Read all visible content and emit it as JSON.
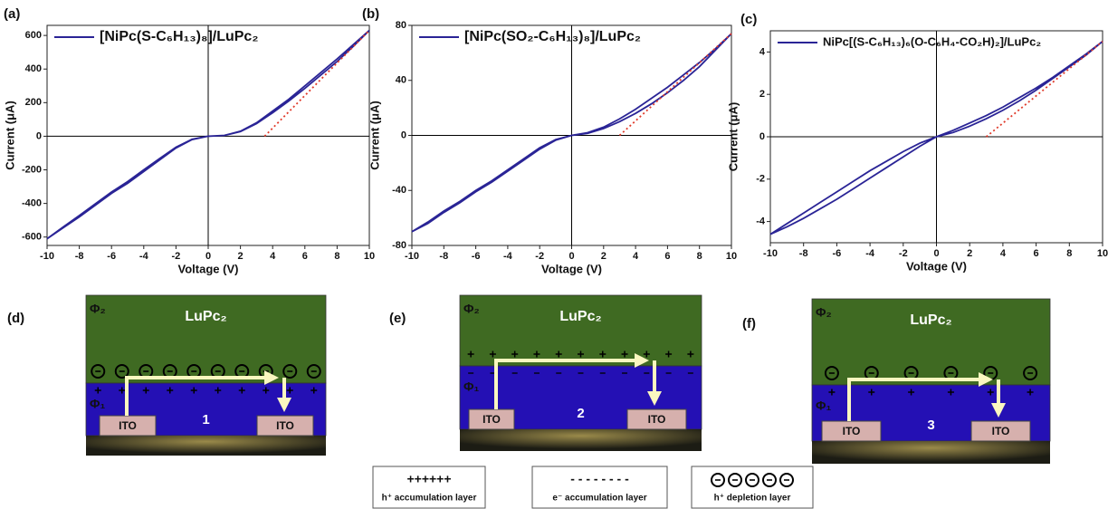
{
  "chart_data": [
    {
      "type": "line",
      "panel_label": "(a)",
      "xlabel": "Voltage (V)",
      "ylabel": "Current (μA)",
      "x": [
        -10,
        -9,
        -8,
        -7,
        -6,
        -5,
        -4,
        -3,
        -2,
        -1,
        0,
        1,
        2,
        3,
        4,
        5,
        6,
        7,
        8,
        9,
        10,
        9,
        8,
        7,
        6,
        5,
        4,
        3,
        2,
        1,
        0,
        -1,
        -2,
        -3,
        -4,
        -5,
        -6,
        -7,
        -8,
        -9,
        -10
      ],
      "series": [
        {
          "name": "[NiPc(S-C₆H₁₃)₈]/LuPc₂",
          "color": "#2a2496",
          "values": [
            -610,
            -545,
            -480,
            -410,
            -340,
            -280,
            -210,
            -140,
            -70,
            -20,
            0,
            5,
            30,
            80,
            150,
            220,
            300,
            380,
            460,
            545,
            630,
            535,
            445,
            365,
            285,
            210,
            140,
            75,
            28,
            5,
            0,
            -18,
            -65,
            -132,
            -200,
            -270,
            -332,
            -402,
            -472,
            -540,
            -610
          ]
        }
      ],
      "tangent": {
        "x": [
          3.5,
          10
        ],
        "values": [
          0,
          630
        ],
        "color": "#e03a2a"
      },
      "xlim": [
        -10,
        10
      ],
      "ylim": [
        -650,
        660
      ],
      "xticks": [
        -10,
        -8,
        -6,
        -4,
        -2,
        0,
        2,
        4,
        6,
        8,
        10
      ],
      "yticks": [
        -600,
        -400,
        -200,
        0,
        200,
        400,
        600
      ]
    },
    {
      "type": "line",
      "panel_label": "(b)",
      "xlabel": "Voltage (V)",
      "ylabel": "Current (μA)",
      "x": [
        -10,
        -9,
        -8,
        -7,
        -6,
        -5,
        -4,
        -3,
        -2,
        -1,
        0,
        1,
        2,
        3,
        4,
        5,
        6,
        7,
        8,
        9,
        10,
        9,
        8,
        7,
        6,
        5,
        4,
        3,
        2,
        1,
        0,
        -1,
        -2,
        -3,
        -4,
        -5,
        -6,
        -7,
        -8,
        -9,
        -10
      ],
      "series": [
        {
          "name": "[NiPc(SO₂-C₆H₁₃)₈]/LuPc₂",
          "color": "#2a2496",
          "values": [
            -70,
            -63,
            -55,
            -48,
            -40,
            -33,
            -25,
            -17,
            -9,
            -3,
            0,
            2,
            6,
            12,
            19,
            27,
            35,
            44,
            53,
            63,
            74,
            62,
            50,
            40,
            31,
            23,
            16,
            10,
            5,
            1.5,
            0,
            -3.5,
            -10,
            -18,
            -26,
            -34,
            -41,
            -49,
            -56,
            -64,
            -70
          ]
        }
      ],
      "tangent": {
        "x": [
          3,
          10
        ],
        "values": [
          0,
          74
        ],
        "color": "#e03a2a"
      },
      "xlim": [
        -10,
        10
      ],
      "ylim": [
        -80,
        80
      ],
      "xticks": [
        -10,
        -8,
        -6,
        -4,
        -2,
        0,
        2,
        4,
        6,
        8,
        10
      ],
      "yticks": [
        -80,
        -40,
        0,
        40,
        80
      ]
    },
    {
      "type": "line",
      "panel_label": "(c)",
      "xlabel": "Voltage (V)",
      "ylabel": "Current (μA)",
      "x": [
        -10,
        -9,
        -8,
        -7,
        -6,
        -5,
        -4,
        -3,
        -2,
        -1,
        0,
        1,
        2,
        3,
        4,
        5,
        6,
        7,
        8,
        9,
        10,
        9,
        8,
        7,
        6,
        5,
        4,
        3,
        2,
        1,
        0,
        -1,
        -2,
        -3,
        -4,
        -5,
        -6,
        -7,
        -8,
        -9,
        -10
      ],
      "series": [
        {
          "name": "NiPc[(S-C₆H₁₃)₆(O-C₆H₄-CO₂H)₂]/LuPc₂",
          "color": "#2a2496",
          "values": [
            -4.6,
            -4.1,
            -3.6,
            -3.1,
            -2.6,
            -2.1,
            -1.6,
            -1.15,
            -0.7,
            -0.3,
            0,
            0.3,
            0.65,
            1.0,
            1.4,
            1.85,
            2.3,
            2.8,
            3.35,
            3.9,
            4.5,
            3.85,
            3.3,
            2.75,
            2.2,
            1.7,
            1.25,
            0.85,
            0.5,
            0.2,
            0,
            -0.45,
            -0.95,
            -1.45,
            -1.95,
            -2.45,
            -2.95,
            -3.4,
            -3.85,
            -4.25,
            -4.6
          ]
        }
      ],
      "tangent": {
        "x": [
          3,
          10
        ],
        "values": [
          0,
          4.5
        ],
        "color": "#e03a2a"
      },
      "xlim": [
        -10,
        10
      ],
      "ylim": [
        -5,
        5
      ],
      "xticks": [
        -10,
        -8,
        -6,
        -4,
        -2,
        0,
        2,
        4,
        6,
        8,
        10
      ],
      "yticks": [
        -4,
        -2,
        0,
        2,
        4
      ]
    }
  ],
  "panels": [
    {
      "label": "(d)",
      "phi_top": "Φ₂",
      "phi_bottom": "Φ₁",
      "layer": "LuPc₂",
      "electrode_left": "ITO",
      "electrode_right": "ITO",
      "number": "1"
    },
    {
      "label": "(e)",
      "phi_top": "Φ₂",
      "phi_bottom": "Φ₁",
      "layer": "LuPc₂",
      "electrode_left": "ITO",
      "electrode_right": "ITO",
      "number": "2"
    },
    {
      "label": "(f)",
      "phi_top": "Φ₂",
      "phi_bottom": "Φ₁",
      "layer": "LuPc₂",
      "electrode_left": "ITO",
      "electrode_right": "ITO",
      "number": "3"
    }
  ],
  "key": [
    {
      "symbol": "++++++",
      "label": "h⁺ accumulation layer"
    },
    {
      "symbol": "- - - - - - - -",
      "label": "e⁻ accumulation layer"
    },
    {
      "label": "h⁺ depletion layer"
    }
  ]
}
